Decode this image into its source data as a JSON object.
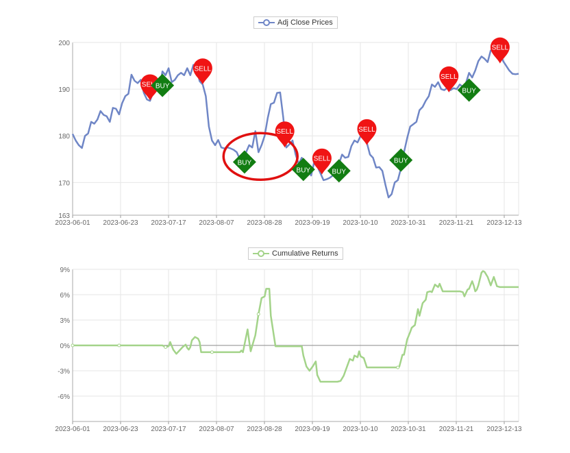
{
  "chart_data": [
    {
      "type": "line",
      "legend": "Adj Close Prices",
      "color": "#6f86c6",
      "x_ticks": [
        "2023-06-01",
        "2023-06-23",
        "2023-07-17",
        "2023-08-07",
        "2023-08-28",
        "2023-09-19",
        "2023-10-10",
        "2023-10-31",
        "2023-11-21",
        "2023-12-13"
      ],
      "ylim": [
        163,
        200
      ],
      "y_ticks": [
        163,
        170,
        180,
        190,
        200
      ],
      "points": [
        [
          0,
          180.4
        ],
        [
          2,
          179
        ],
        [
          4,
          178
        ],
        [
          6,
          177.4
        ],
        [
          8,
          180
        ],
        [
          10,
          180.5
        ],
        [
          12,
          183
        ],
        [
          14,
          182.6
        ],
        [
          16,
          183.5
        ],
        [
          18,
          185.3
        ],
        [
          20,
          184.5
        ],
        [
          22,
          184.2
        ],
        [
          24,
          183
        ],
        [
          26,
          186
        ],
        [
          28,
          185.8
        ],
        [
          30,
          184.6
        ],
        [
          32,
          187
        ],
        [
          34,
          188.5
        ],
        [
          36,
          189
        ],
        [
          38,
          193.1
        ],
        [
          40,
          191.8
        ],
        [
          42,
          191.3
        ],
        [
          44,
          192
        ],
        [
          46,
          189.2
        ],
        [
          48,
          187.8
        ],
        [
          50,
          187.5
        ],
        [
          52,
          189.3
        ],
        [
          54,
          191
        ],
        [
          56,
          190
        ],
        [
          58,
          193.8
        ],
        [
          60,
          193
        ],
        [
          62,
          194.5
        ],
        [
          64,
          191.5
        ],
        [
          66,
          192
        ],
        [
          68,
          193
        ],
        [
          70,
          193.5
        ],
        [
          72,
          193
        ],
        [
          74,
          194.5
        ],
        [
          76,
          193
        ],
        [
          78,
          195.2
        ],
        [
          80,
          194.6
        ],
        [
          82,
          191.7
        ],
        [
          84,
          191
        ],
        [
          86,
          188.5
        ],
        [
          88,
          182
        ],
        [
          90,
          179
        ],
        [
          92,
          178
        ],
        [
          94,
          179.1
        ],
        [
          96,
          177.5
        ],
        [
          98,
          177.3
        ],
        [
          100,
          177.5
        ],
        [
          102,
          177.3
        ],
        [
          104,
          177
        ],
        [
          106,
          176.5
        ],
        [
          108,
          175
        ],
        [
          110,
          174.2
        ],
        [
          112,
          176.5
        ],
        [
          114,
          178
        ],
        [
          116,
          177.5
        ],
        [
          118,
          181
        ],
        [
          120,
          176.5
        ],
        [
          122,
          178
        ],
        [
          124,
          180
        ],
        [
          126,
          183.8
        ],
        [
          128,
          186.8
        ],
        [
          130,
          187.1
        ],
        [
          132,
          189.2
        ],
        [
          134,
          189.3
        ],
        [
          136,
          184
        ],
        [
          138,
          177.5
        ],
        [
          140,
          178.2
        ],
        [
          142,
          179
        ],
        [
          144,
          176
        ],
        [
          146,
          174
        ],
        [
          148,
          175.3
        ],
        [
          150,
          174.1
        ],
        [
          152,
          173
        ],
        [
          154,
          171.5
        ],
        [
          156,
          174.3
        ],
        [
          158,
          173.5
        ],
        [
          160,
          172
        ],
        [
          162,
          170.5
        ],
        [
          164,
          170.7
        ],
        [
          166,
          171
        ],
        [
          168,
          171.5
        ],
        [
          170,
          173
        ],
        [
          172,
          174
        ],
        [
          174,
          176
        ],
        [
          176,
          175.3
        ],
        [
          178,
          175.5
        ],
        [
          180,
          177.8
        ],
        [
          182,
          179
        ],
        [
          184,
          178.6
        ],
        [
          186,
          180
        ],
        [
          188,
          179.5
        ],
        [
          190,
          178.5
        ],
        [
          192,
          176
        ],
        [
          194,
          175.3
        ],
        [
          196,
          173.2
        ],
        [
          198,
          173.3
        ],
        [
          200,
          172.5
        ],
        [
          202,
          169.5
        ],
        [
          204,
          166.8
        ],
        [
          206,
          167.5
        ],
        [
          208,
          170
        ],
        [
          210,
          170.5
        ],
        [
          212,
          173
        ],
        [
          214,
          176.5
        ],
        [
          216,
          179.5
        ],
        [
          218,
          182
        ],
        [
          220,
          182.5
        ],
        [
          222,
          183
        ],
        [
          224,
          185.5
        ],
        [
          226,
          186.2
        ],
        [
          228,
          187.5
        ],
        [
          230,
          188.5
        ],
        [
          232,
          191
        ],
        [
          234,
          190.5
        ],
        [
          236,
          191.5
        ],
        [
          238,
          190
        ],
        [
          240,
          189.8
        ],
        [
          242,
          190.3
        ],
        [
          244,
          189.8
        ],
        [
          246,
          190.2
        ],
        [
          248,
          190
        ],
        [
          250,
          191
        ],
        [
          252,
          190.5
        ],
        [
          254,
          191.3
        ],
        [
          256,
          193.5
        ],
        [
          258,
          192.5
        ],
        [
          260,
          194
        ],
        [
          262,
          196
        ],
        [
          264,
          197
        ],
        [
          266,
          196.5
        ],
        [
          268,
          195.8
        ],
        [
          270,
          198.3
        ],
        [
          272,
          198.3
        ],
        [
          274,
          197.5
        ],
        [
          276,
          198
        ],
        [
          278,
          196
        ],
        [
          280,
          195
        ],
        [
          282,
          194
        ],
        [
          284,
          193.3
        ],
        [
          286,
          193.2
        ],
        [
          288,
          193.3
        ]
      ],
      "x_max": 288,
      "markers": [
        {
          "label": "SELL",
          "type": "sell",
          "x": 50,
          "y": 187.6
        },
        {
          "label": "BUY",
          "type": "buy",
          "x": 58,
          "y": 190.8
        },
        {
          "label": "SELL",
          "type": "sell",
          "x": 84,
          "y": 191
        },
        {
          "label": "BUY",
          "type": "buy",
          "x": 111,
          "y": 174.4
        },
        {
          "label": "SELL",
          "type": "sell",
          "x": 137,
          "y": 177.5
        },
        {
          "label": "BUY",
          "type": "buy",
          "x": 149,
          "y": 172.8
        },
        {
          "label": "SELL",
          "type": "sell",
          "x": 161,
          "y": 171.7
        },
        {
          "label": "BUY",
          "type": "buy",
          "x": 172,
          "y": 172.5
        },
        {
          "label": "SELL",
          "type": "sell",
          "x": 190,
          "y": 178
        },
        {
          "label": "BUY",
          "type": "buy",
          "x": 212,
          "y": 174.8
        },
        {
          "label": "SELL",
          "type": "sell",
          "x": 243,
          "y": 189.3
        },
        {
          "label": "BUY",
          "type": "buy",
          "x": 256,
          "y": 189.8
        },
        {
          "label": "SELL",
          "type": "sell",
          "x": 276,
          "y": 195.5
        }
      ],
      "highlight": {
        "x": 120,
        "y": 175.3,
        "color": "#e01010"
      }
    },
    {
      "type": "line",
      "legend": "Cumulative Returns",
      "color": "#a3d389",
      "x_ticks": [
        "2023-06-01",
        "2023-06-23",
        "2023-07-17",
        "2023-08-07",
        "2023-08-28",
        "2023-09-19",
        "2023-10-10",
        "2023-10-31",
        "2023-11-21",
        "2023-12-13"
      ],
      "ylim": [
        -9,
        9
      ],
      "y_ticks": [
        9,
        6,
        3,
        0,
        -3,
        -6
      ],
      "y_tick_labels": [
        "9%",
        "6%",
        "3%",
        "0%",
        "-3%",
        "-6%"
      ],
      "points": [
        [
          0,
          0
        ],
        [
          30,
          0
        ],
        [
          58,
          0
        ],
        [
          60,
          -0.2
        ],
        [
          62,
          -0.1
        ],
        [
          63,
          0.4
        ],
        [
          65,
          -0.5
        ],
        [
          67,
          -1
        ],
        [
          69,
          -0.6
        ],
        [
          71,
          -0.2
        ],
        [
          73,
          0.1
        ],
        [
          74,
          -0.3
        ],
        [
          75,
          -0.5
        ],
        [
          76,
          -0.2
        ],
        [
          77,
          0.6
        ],
        [
          79,
          1
        ],
        [
          81,
          0.8
        ],
        [
          82,
          0.4
        ],
        [
          83,
          -0.8
        ],
        [
          90,
          -0.8
        ],
        [
          108,
          -0.8
        ],
        [
          109,
          -0.6
        ],
        [
          110,
          -0.8
        ],
        [
          113,
          1.9
        ],
        [
          114,
          0.5
        ],
        [
          115,
          -0.7
        ],
        [
          117,
          0.6
        ],
        [
          118,
          1.2
        ],
        [
          120,
          3.7
        ],
        [
          122,
          5.6
        ],
        [
          124,
          5.8
        ],
        [
          125,
          6.7
        ],
        [
          127,
          6.7
        ],
        [
          128,
          3.5
        ],
        [
          131,
          -0.1
        ],
        [
          135,
          -0.1
        ],
        [
          148,
          -0.1
        ],
        [
          149,
          -1.2
        ],
        [
          151,
          -2.5
        ],
        [
          153,
          -3
        ],
        [
          155,
          -2.5
        ],
        [
          157,
          -1.9
        ],
        [
          158,
          -3.5
        ],
        [
          160,
          -4.3
        ],
        [
          163,
          -4.3
        ],
        [
          171,
          -4.3
        ],
        [
          173,
          -4.2
        ],
        [
          175,
          -3.6
        ],
        [
          177,
          -2.6
        ],
        [
          179,
          -1.6
        ],
        [
          181,
          -1.8
        ],
        [
          182,
          -1.2
        ],
        [
          184,
          -1.4
        ],
        [
          185,
          -0.7
        ],
        [
          186,
          -1.3
        ],
        [
          188,
          -1.5
        ],
        [
          190,
          -2.6
        ],
        [
          194,
          -2.6
        ],
        [
          210,
          -2.6
        ],
        [
          211,
          -2.5
        ],
        [
          213,
          -1.1
        ],
        [
          214,
          -1.1
        ],
        [
          216,
          0.7
        ],
        [
          218,
          1.6
        ],
        [
          219,
          2.1
        ],
        [
          221,
          2.4
        ],
        [
          223,
          4.3
        ],
        [
          224,
          3.5
        ],
        [
          226,
          5
        ],
        [
          228,
          5.4
        ],
        [
          229,
          6.3
        ],
        [
          231,
          6.4
        ],
        [
          232,
          6.3
        ],
        [
          234,
          7.2
        ],
        [
          236,
          6.9
        ],
        [
          237,
          7.3
        ],
        [
          239,
          6.4
        ],
        [
          241,
          6.4
        ],
        [
          250,
          6.4
        ],
        [
          252,
          6.3
        ],
        [
          253,
          5.8
        ],
        [
          255,
          6.6
        ],
        [
          256,
          6.7
        ],
        [
          258,
          7.6
        ],
        [
          259,
          7.1
        ],
        [
          260,
          6.4
        ],
        [
          261,
          6.6
        ],
        [
          262,
          7.1
        ],
        [
          264,
          8.6
        ],
        [
          265,
          8.8
        ],
        [
          266,
          8.7
        ],
        [
          268,
          8.1
        ],
        [
          270,
          7.1
        ],
        [
          272,
          8.1
        ],
        [
          274,
          7
        ],
        [
          276,
          6.9
        ],
        [
          282,
          6.9
        ],
        [
          288,
          6.9
        ]
      ],
      "x_max": 288,
      "circles": [
        [
          0,
          0
        ],
        [
          30,
          0
        ],
        [
          60,
          -0.2
        ],
        [
          90,
          -0.8
        ],
        [
          120,
          3.7
        ],
        [
          210,
          -2.6
        ]
      ]
    }
  ]
}
